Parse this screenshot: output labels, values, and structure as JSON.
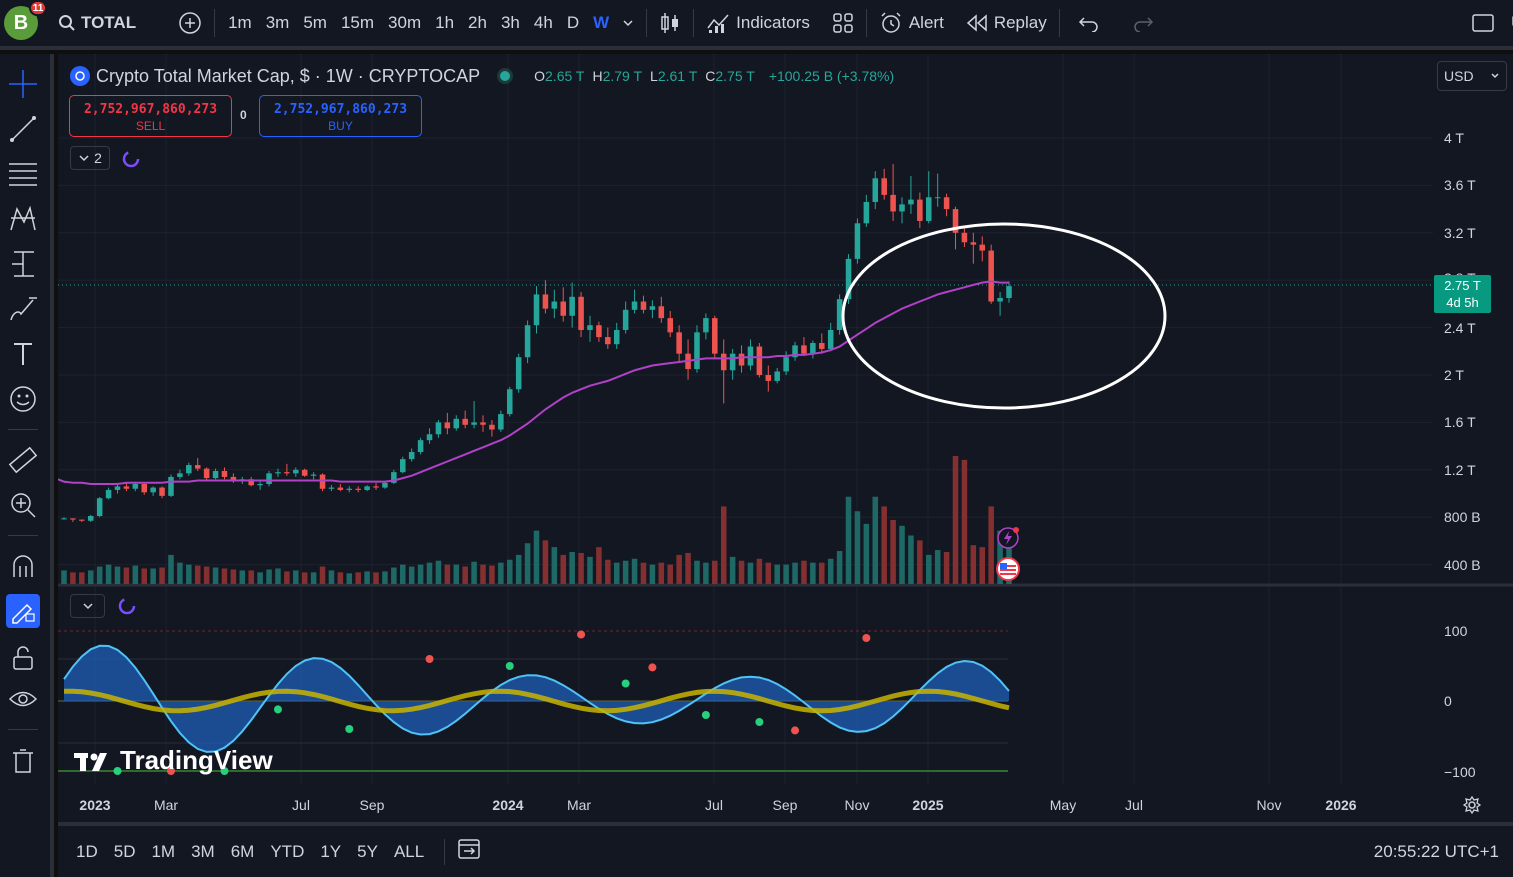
{
  "topbar": {
    "avatar_letter": "B",
    "avatar_badge": "11",
    "symbol": "TOTAL",
    "timeframes": [
      "1m",
      "3m",
      "5m",
      "15m",
      "30m",
      "1h",
      "2h",
      "3h",
      "4h",
      "D",
      "W"
    ],
    "active_timeframe": "W",
    "indicators_label": "Indicators",
    "alert_label": "Alert",
    "replay_label": "Replay",
    "truncated_right": "U"
  },
  "legend": {
    "symbol_title": "Crypto Total Market Cap, $ · 1W · CRYPTOCAP",
    "ohlc": [
      {
        "key": "O",
        "value": "2.65 T"
      },
      {
        "key": "H",
        "value": "2.79 T"
      },
      {
        "key": "L",
        "value": "2.61 T"
      },
      {
        "key": "C",
        "value": "2.75 T"
      }
    ],
    "change": "+100.25 B (+3.78%)",
    "indicator_count": "2"
  },
  "trade": {
    "sell_price": "2,752,967,860,273",
    "sell_label": "SELL",
    "buy_price": "2,752,967,860,273",
    "buy_label": "BUY",
    "spread": "0"
  },
  "currency": "USD",
  "price_axis": [
    "4 T",
    "3.6 T",
    "3.2 T",
    "2.4 T",
    "2 T",
    "1.6 T",
    "1.2 T",
    "800 B",
    "400 B"
  ],
  "price_axis_partial": "2.8 T",
  "last_price": {
    "value": "2.75 T",
    "countdown": "4d 5h"
  },
  "oscillator_axis": [
    "100",
    "0",
    "−100"
  ],
  "time_axis": [
    {
      "label": "2023",
      "year": true
    },
    {
      "label": "Mar",
      "year": false
    },
    {
      "label": "Jul",
      "year": false
    },
    {
      "label": "Sep",
      "year": false
    },
    {
      "label": "2024",
      "year": true
    },
    {
      "label": "Mar",
      "year": false
    },
    {
      "label": "Jul",
      "year": false
    },
    {
      "label": "Sep",
      "year": false
    },
    {
      "label": "Nov",
      "year": false
    },
    {
      "label": "2025",
      "year": true
    },
    {
      "label": "May",
      "year": false
    },
    {
      "label": "Jul",
      "year": false
    },
    {
      "label": "Nov",
      "year": false
    },
    {
      "label": "2026",
      "year": true
    }
  ],
  "ranges": [
    "1D",
    "5D",
    "1M",
    "3M",
    "6M",
    "YTD",
    "1Y",
    "5Y",
    "ALL"
  ],
  "clock": "20:55:22 UTC+1",
  "brand": "TradingView",
  "colors": {
    "up": "#26a69a",
    "down": "#ef5350",
    "ma": "#b042c8",
    "accent": "#2962ff",
    "annotation": "#ffffff"
  },
  "chart_data": {
    "type": "candlestick",
    "title": "Crypto Total Market Cap, $ · 1W · CRYPTOCAP",
    "ylabel": "",
    "ylim": [
      600000000000,
      4200000000000
    ],
    "candles": [
      [
        0.79,
        0.8,
        0.78,
        0.79
      ],
      [
        0.79,
        0.79,
        0.76,
        0.78
      ],
      [
        0.78,
        0.78,
        0.76,
        0.77
      ],
      [
        0.77,
        0.82,
        0.76,
        0.81
      ],
      [
        0.81,
        0.97,
        0.8,
        0.96
      ],
      [
        0.96,
        1.05,
        0.95,
        1.03
      ],
      [
        1.03,
        1.09,
        1.0,
        1.06
      ],
      [
        1.06,
        1.09,
        1.02,
        1.04
      ],
      [
        1.04,
        1.1,
        1.02,
        1.08
      ],
      [
        1.08,
        1.09,
        0.99,
        1.01
      ],
      [
        1.01,
        1.06,
        0.98,
        1.05
      ],
      [
        1.05,
        1.06,
        0.96,
        0.98
      ],
      [
        0.98,
        1.16,
        0.97,
        1.14
      ],
      [
        1.14,
        1.2,
        1.12,
        1.17
      ],
      [
        1.17,
        1.26,
        1.15,
        1.24
      ],
      [
        1.24,
        1.3,
        1.19,
        1.21
      ],
      [
        1.21,
        1.22,
        1.11,
        1.13
      ],
      [
        1.13,
        1.21,
        1.12,
        1.19
      ],
      [
        1.19,
        1.22,
        1.12,
        1.14
      ],
      [
        1.14,
        1.17,
        1.09,
        1.11
      ],
      [
        1.11,
        1.14,
        1.08,
        1.12
      ],
      [
        1.12,
        1.14,
        1.06,
        1.07
      ],
      [
        1.07,
        1.1,
        1.03,
        1.08
      ],
      [
        1.08,
        1.19,
        1.06,
        1.17
      ],
      [
        1.17,
        1.21,
        1.14,
        1.18
      ],
      [
        1.18,
        1.25,
        1.15,
        1.17
      ],
      [
        1.17,
        1.22,
        1.14,
        1.2
      ],
      [
        1.2,
        1.21,
        1.14,
        1.15
      ],
      [
        1.15,
        1.18,
        1.12,
        1.16
      ],
      [
        1.16,
        1.17,
        1.02,
        1.04
      ],
      [
        1.04,
        1.07,
        1.02,
        1.05
      ],
      [
        1.05,
        1.08,
        1.02,
        1.03
      ],
      [
        1.03,
        1.06,
        1.01,
        1.04
      ],
      [
        1.04,
        1.06,
        1.01,
        1.03
      ],
      [
        1.03,
        1.07,
        1.02,
        1.06
      ],
      [
        1.06,
        1.09,
        1.03,
        1.05
      ],
      [
        1.05,
        1.1,
        1.04,
        1.09
      ],
      [
        1.09,
        1.2,
        1.08,
        1.18
      ],
      [
        1.18,
        1.31,
        1.17,
        1.29
      ],
      [
        1.29,
        1.38,
        1.27,
        1.35
      ],
      [
        1.35,
        1.47,
        1.33,
        1.45
      ],
      [
        1.45,
        1.55,
        1.42,
        1.5
      ],
      [
        1.5,
        1.62,
        1.47,
        1.6
      ],
      [
        1.6,
        1.68,
        1.5,
        1.55
      ],
      [
        1.55,
        1.66,
        1.53,
        1.63
      ],
      [
        1.63,
        1.7,
        1.55,
        1.58
      ],
      [
        1.58,
        1.78,
        1.55,
        1.6
      ],
      [
        1.6,
        1.66,
        1.52,
        1.58
      ],
      [
        1.58,
        1.62,
        1.48,
        1.54
      ],
      [
        1.54,
        1.7,
        1.52,
        1.67
      ],
      [
        1.67,
        1.9,
        1.65,
        1.88
      ],
      [
        1.88,
        2.18,
        1.85,
        2.15
      ],
      [
        2.15,
        2.46,
        2.1,
        2.42
      ],
      [
        2.42,
        2.75,
        2.35,
        2.68
      ],
      [
        2.68,
        2.8,
        2.52,
        2.56
      ],
      [
        2.56,
        2.72,
        2.48,
        2.62
      ],
      [
        2.62,
        2.74,
        2.45,
        2.5
      ],
      [
        2.5,
        2.78,
        2.4,
        2.66
      ],
      [
        2.66,
        2.7,
        2.32,
        2.38
      ],
      [
        2.38,
        2.5,
        2.28,
        2.42
      ],
      [
        2.42,
        2.45,
        2.28,
        2.32
      ],
      [
        2.32,
        2.4,
        2.22,
        2.26
      ],
      [
        2.26,
        2.44,
        2.22,
        2.38
      ],
      [
        2.38,
        2.62,
        2.35,
        2.55
      ],
      [
        2.55,
        2.72,
        2.52,
        2.62
      ],
      [
        2.62,
        2.67,
        2.52,
        2.55
      ],
      [
        2.55,
        2.63,
        2.48,
        2.58
      ],
      [
        2.58,
        2.66,
        2.44,
        2.48
      ],
      [
        2.48,
        2.54,
        2.32,
        2.36
      ],
      [
        2.36,
        2.42,
        2.1,
        2.18
      ],
      [
        2.18,
        2.3,
        1.96,
        2.05
      ],
      [
        2.05,
        2.42,
        2.02,
        2.36
      ],
      [
        2.36,
        2.52,
        2.3,
        2.48
      ],
      [
        2.48,
        2.5,
        2.14,
        2.18
      ],
      [
        2.18,
        2.3,
        1.76,
        2.04
      ],
      [
        2.04,
        2.22,
        1.96,
        2.18
      ],
      [
        2.18,
        2.25,
        2.02,
        2.08
      ],
      [
        2.08,
        2.3,
        2.04,
        2.24
      ],
      [
        2.24,
        2.27,
        1.98,
        2.0
      ],
      [
        2.0,
        2.08,
        1.86,
        1.95
      ],
      [
        1.95,
        2.06,
        1.93,
        2.03
      ],
      [
        2.03,
        2.2,
        2.0,
        2.15
      ],
      [
        2.15,
        2.28,
        2.12,
        2.25
      ],
      [
        2.25,
        2.32,
        2.16,
        2.18
      ],
      [
        2.18,
        2.29,
        2.14,
        2.27
      ],
      [
        2.27,
        2.35,
        2.18,
        2.22
      ],
      [
        2.22,
        2.44,
        2.2,
        2.38
      ],
      [
        2.38,
        2.68,
        2.34,
        2.64
      ],
      [
        2.64,
        3.02,
        2.6,
        2.98
      ],
      [
        2.98,
        3.32,
        2.94,
        3.28
      ],
      [
        3.28,
        3.52,
        3.25,
        3.46
      ],
      [
        3.46,
        3.72,
        3.4,
        3.66
      ],
      [
        3.66,
        3.74,
        3.48,
        3.52
      ],
      [
        3.52,
        3.78,
        3.3,
        3.38
      ],
      [
        3.38,
        3.5,
        3.28,
        3.44
      ],
      [
        3.44,
        3.68,
        3.36,
        3.48
      ],
      [
        3.48,
        3.54,
        3.24,
        3.3
      ],
      [
        3.3,
        3.72,
        3.28,
        3.5
      ],
      [
        3.5,
        3.7,
        3.42,
        3.5
      ],
      [
        3.5,
        3.53,
        3.34,
        3.4
      ],
      [
        3.4,
        3.42,
        3.06,
        3.2
      ],
      [
        3.2,
        3.26,
        3.08,
        3.12
      ],
      [
        3.12,
        3.2,
        2.94,
        3.1
      ],
      [
        3.1,
        3.17,
        2.96,
        3.05
      ],
      [
        3.05,
        3.1,
        2.6,
        2.62
      ],
      [
        2.62,
        2.7,
        2.5,
        2.65
      ],
      [
        2.65,
        2.79,
        2.61,
        2.75
      ]
    ],
    "ma_line": [
      1.1,
      1.09,
      1.09,
      1.08,
      1.08,
      1.08,
      1.08,
      1.09,
      1.09,
      1.09,
      1.09,
      1.09,
      1.1,
      1.1,
      1.1,
      1.11,
      1.11,
      1.11,
      1.11,
      1.11,
      1.11,
      1.11,
      1.11,
      1.11,
      1.11,
      1.11,
      1.11,
      1.11,
      1.11,
      1.11,
      1.11,
      1.1,
      1.1,
      1.1,
      1.1,
      1.1,
      1.1,
      1.11,
      1.13,
      1.15,
      1.18,
      1.21,
      1.24,
      1.27,
      1.3,
      1.33,
      1.36,
      1.39,
      1.42,
      1.45,
      1.49,
      1.54,
      1.59,
      1.65,
      1.71,
      1.76,
      1.81,
      1.85,
      1.88,
      1.91,
      1.93,
      1.95,
      1.98,
      2.01,
      2.04,
      2.06,
      2.08,
      2.09,
      2.1,
      2.11,
      2.12,
      2.13,
      2.14,
      2.14,
      2.14,
      2.14,
      2.15,
      2.15,
      2.15,
      2.15,
      2.16,
      2.16,
      2.17,
      2.17,
      2.18,
      2.19,
      2.21,
      2.24,
      2.29,
      2.34,
      2.39,
      2.44,
      2.48,
      2.52,
      2.56,
      2.59,
      2.62,
      2.65,
      2.68,
      2.7,
      2.72,
      2.74,
      2.76,
      2.78,
      2.79,
      2.78,
      2.78
    ],
    "volume_unit": "relative",
    "volume": [
      0.14,
      0.12,
      0.12,
      0.14,
      0.18,
      0.2,
      0.18,
      0.17,
      0.19,
      0.16,
      0.16,
      0.17,
      0.3,
      0.22,
      0.2,
      0.19,
      0.18,
      0.17,
      0.16,
      0.15,
      0.14,
      0.14,
      0.12,
      0.15,
      0.16,
      0.13,
      0.14,
      0.12,
      0.12,
      0.18,
      0.14,
      0.12,
      0.11,
      0.12,
      0.13,
      0.12,
      0.13,
      0.17,
      0.2,
      0.18,
      0.2,
      0.22,
      0.24,
      0.2,
      0.2,
      0.18,
      0.23,
      0.2,
      0.19,
      0.22,
      0.25,
      0.3,
      0.42,
      0.55,
      0.45,
      0.38,
      0.3,
      0.33,
      0.32,
      0.28,
      0.38,
      0.25,
      0.22,
      0.24,
      0.26,
      0.22,
      0.2,
      0.22,
      0.2,
      0.3,
      0.32,
      0.24,
      0.22,
      0.24,
      0.8,
      0.28,
      0.24,
      0.22,
      0.26,
      0.22,
      0.2,
      0.2,
      0.22,
      0.24,
      0.22,
      0.22,
      0.26,
      0.34,
      0.9,
      0.75,
      0.62,
      0.9,
      0.8,
      0.66,
      0.6,
      0.5,
      0.45,
      0.3,
      0.35,
      0.33,
      1.32,
      1.28,
      0.4,
      0.38,
      0.8,
      0.55,
      0.4
    ],
    "oscillator": {
      "ylim": [
        -100,
        100
      ],
      "zero_line": 0,
      "band_upper": 100,
      "band_lower": -100
    }
  }
}
